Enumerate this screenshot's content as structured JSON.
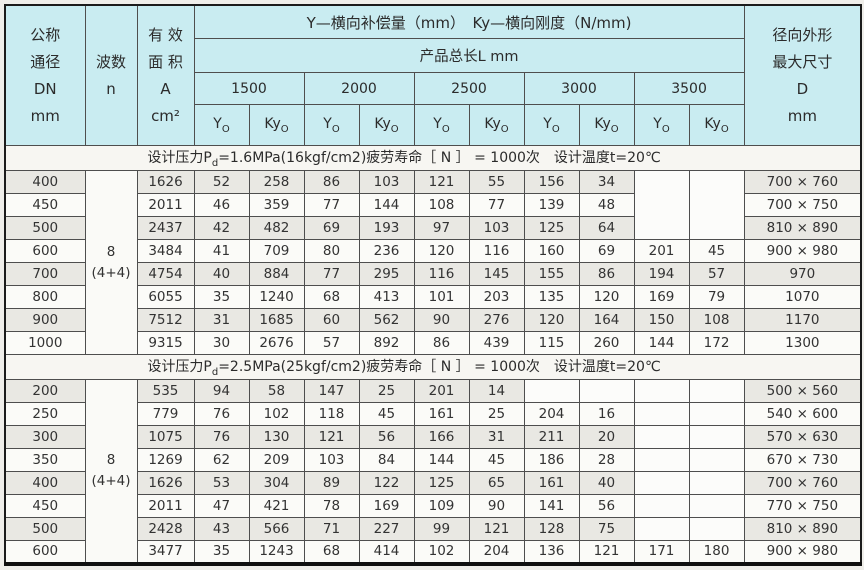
{
  "table": {
    "header": {
      "col_dn": [
        "公称",
        "通径",
        "DN",
        "mm"
      ],
      "col_n": [
        "波数",
        "n"
      ],
      "col_a": [
        "有 效",
        "面 积",
        "A",
        "cm²"
      ],
      "col_d": [
        "径向外形",
        "最大尺寸",
        "D",
        "mm"
      ],
      "title": "Y—横向补偿量（mm）　Ky—横向刚度（N/mm)",
      "subtitle": "产品总长L mm",
      "lengths": [
        "1500",
        "2000",
        "2500",
        "3000",
        "3500"
      ],
      "y_base": "Y",
      "ky_base": "Ky",
      "sub_o": "O"
    },
    "colors": {
      "header_bg": "#c9ecf1",
      "row_gray": "#e9e8e3",
      "row_white": "#fbfbf8",
      "grid_line": "#4e4e4e"
    },
    "sections": [
      {
        "title": {
          "pre": "设计压力P",
          "sub": "d",
          "post": "=1.6MPa(16kgf/cm2)疲劳寿命［ N ］ = 1000次　设计温度t=20℃"
        },
        "wave_number": [
          "8",
          "(4+4)"
        ],
        "merged_blank_3500_rows": [
          0,
          1,
          2
        ],
        "rows": [
          {
            "dn": "400",
            "a": "1626",
            "vals": [
              "52",
              "258",
              "86",
              "103",
              "121",
              "55",
              "156",
              "34",
              "",
              ""
            ],
            "d": "700 × 760"
          },
          {
            "dn": "450",
            "a": "2011",
            "vals": [
              "46",
              "359",
              "77",
              "144",
              "108",
              "77",
              "139",
              "48",
              "",
              ""
            ],
            "d": "700 × 750"
          },
          {
            "dn": "500",
            "a": "2437",
            "vals": [
              "42",
              "482",
              "69",
              "193",
              "97",
              "103",
              "125",
              "64",
              "",
              ""
            ],
            "d": "810 × 890"
          },
          {
            "dn": "600",
            "a": "3484",
            "vals": [
              "41",
              "709",
              "80",
              "236",
              "120",
              "116",
              "160",
              "69",
              "201",
              "45"
            ],
            "d": "900 × 980"
          },
          {
            "dn": "700",
            "a": "4754",
            "vals": [
              "40",
              "884",
              "77",
              "295",
              "116",
              "145",
              "155",
              "86",
              "194",
              "57"
            ],
            "d": "970"
          },
          {
            "dn": "800",
            "a": "6055",
            "vals": [
              "35",
              "1240",
              "68",
              "413",
              "101",
              "203",
              "135",
              "120",
              "169",
              "79"
            ],
            "d": "1070"
          },
          {
            "dn": "900",
            "a": "7512",
            "vals": [
              "31",
              "1685",
              "60",
              "562",
              "90",
              "276",
              "120",
              "164",
              "150",
              "108"
            ],
            "d": "1170"
          },
          {
            "dn": "1000",
            "a": "9315",
            "vals": [
              "30",
              "2676",
              "57",
              "892",
              "86",
              "439",
              "115",
              "260",
              "144",
              "172"
            ],
            "d": "1300"
          }
        ]
      },
      {
        "title": {
          "pre": "设计压力P",
          "sub": "d",
          "post": "=2.5MPa(25kgf/cm2)疲劳寿命［ N ］ = 1000次　设计温度t=20℃"
        },
        "wave_number": [
          "8",
          "(4+4)"
        ],
        "merged_blank_3500_rows": [],
        "rows": [
          {
            "dn": "200",
            "a": "535",
            "vals": [
              "94",
              "58",
              "147",
              "25",
              "201",
              "14",
              "",
              "",
              "",
              ""
            ],
            "d": "500 × 560"
          },
          {
            "dn": "250",
            "a": "779",
            "vals": [
              "76",
              "102",
              "118",
              "45",
              "161",
              "25",
              "204",
              "16",
              "",
              ""
            ],
            "d": "540 × 600"
          },
          {
            "dn": "300",
            "a": "1075",
            "vals": [
              "76",
              "130",
              "121",
              "56",
              "166",
              "31",
              "211",
              "20",
              "",
              ""
            ],
            "d": "570 × 630"
          },
          {
            "dn": "350",
            "a": "1269",
            "vals": [
              "62",
              "209",
              "103",
              "84",
              "144",
              "45",
              "186",
              "28",
              "",
              ""
            ],
            "d": "670 × 730"
          },
          {
            "dn": "400",
            "a": "1626",
            "vals": [
              "53",
              "304",
              "89",
              "122",
              "125",
              "65",
              "161",
              "40",
              "",
              ""
            ],
            "d": "700 × 760"
          },
          {
            "dn": "450",
            "a": "2011",
            "vals": [
              "47",
              "421",
              "78",
              "169",
              "109",
              "90",
              "141",
              "56",
              "",
              ""
            ],
            "d": "770 × 750"
          },
          {
            "dn": "500",
            "a": "2428",
            "vals": [
              "43",
              "566",
              "71",
              "227",
              "99",
              "121",
              "128",
              "75",
              "",
              ""
            ],
            "d": "810 × 890"
          },
          {
            "dn": "600",
            "a": "3477",
            "vals": [
              "35",
              "1243",
              "68",
              "414",
              "102",
              "204",
              "136",
              "121",
              "171",
              "180"
            ],
            "d": "900 × 980"
          }
        ]
      }
    ]
  }
}
